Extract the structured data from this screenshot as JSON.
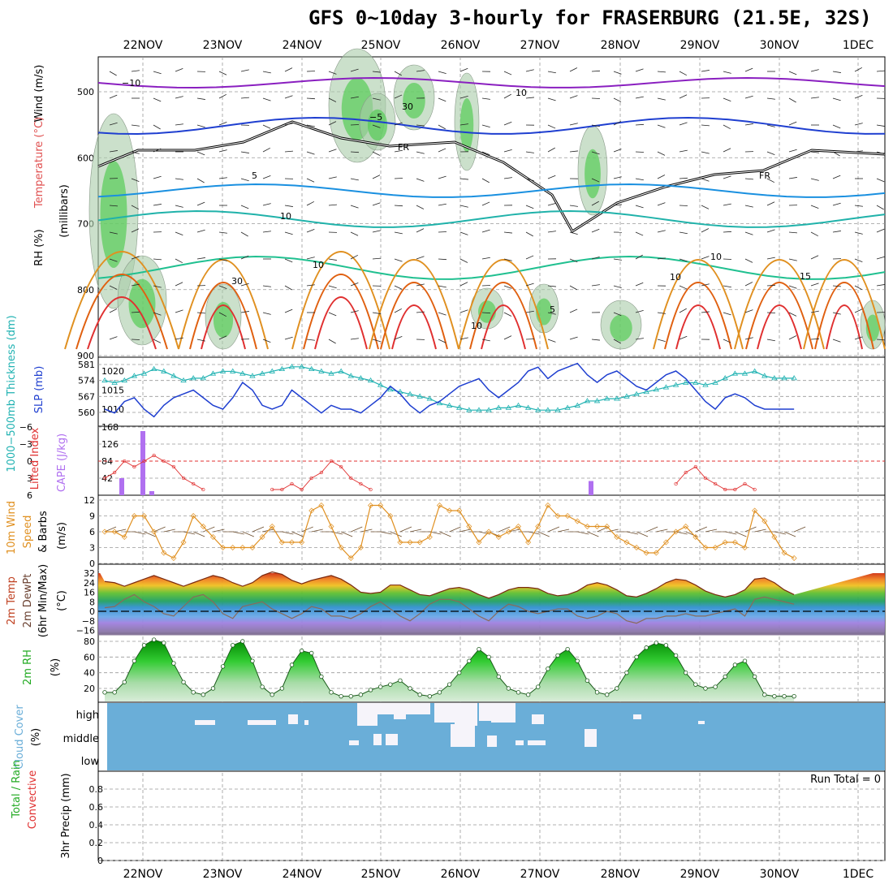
{
  "title": "GFS 0~10day 3-hourly for FRASERBURG (21.5E, 32S)",
  "dates": [
    "22NOV",
    "23NOV",
    "24NOV",
    "25NOV",
    "26NOV",
    "27NOV",
    "28NOV",
    "29NOV",
    "30NOV",
    "1DEC"
  ],
  "colors": {
    "temp0": "#8a2be2",
    "temp5": "#1e90ff",
    "temp10": "#20b2aa",
    "warm": "#ff8c00",
    "slp": "#1f3fd0",
    "thick": "#20b2b2",
    "li": "#e03030",
    "cape": "#b070f0",
    "wind": "#e09020",
    "rh": "#22bb22",
    "cloud": "#6aaed8"
  },
  "panels": {
    "upper": {
      "label_wind": "Wind (m/s)",
      "label_temp": "Temperature (°C)",
      "label_rh": "RH (%)",
      "label_mb": "(millibars)",
      "yticks": [
        "500",
        "600",
        "700",
        "800",
        "900"
      ],
      "contour_labels": [
        "−10",
        "10",
        "−5",
        "FR",
        "5",
        "10",
        "15",
        "10",
        "5",
        "10",
        "30",
        "10",
        "30",
        "10",
        "FR"
      ]
    },
    "slp": {
      "label_thk": "1000−500mb Thickness (dm)",
      "label_slp": "SLP (mb)",
      "ticks_left": [
        "581",
        "574",
        "567",
        "560"
      ],
      "ticks_right": [
        "1020",
        "1015",
        "1010"
      ]
    },
    "li": {
      "label_li": "Lifted Index",
      "label_cape": "CAPE (J/kg)",
      "ticks_left": [
        "−6",
        "−3",
        "0",
        "3",
        "6"
      ],
      "ticks_right": [
        "168",
        "126",
        "84",
        "42"
      ]
    },
    "wind10": {
      "label_a": "10m Wind",
      "label_b": "Speed",
      "label_c": "& Barbs",
      "label_unit": "(m/s)",
      "ticks": [
        "12",
        "9",
        "6",
        "3",
        "0"
      ]
    },
    "temp2m": {
      "label_a": "2m Temp",
      "label_b": "2m DewPt",
      "label_c": "(6hr Min/Max)",
      "label_unit": "(°C)",
      "ticks": [
        "32",
        "24",
        "16",
        "8",
        "0",
        "−8",
        "−16"
      ]
    },
    "rh2m": {
      "label": "2m RH",
      "label_unit": "(%)",
      "ticks": [
        "80",
        "60",
        "40",
        "20"
      ]
    },
    "cloud": {
      "label": "Cloud Cover",
      "label_unit": "(%)",
      "levels": [
        "high",
        "middle",
        "low"
      ]
    },
    "precip": {
      "label_a": "3hr Precip (mm)",
      "label_b": "Total / Rain",
      "label_c": "Convective",
      "run_total": "Run Total = 0",
      "ticks": [
        "0.8",
        "0.6",
        "0.4",
        "0.2",
        "0"
      ]
    }
  },
  "chart_data": [
    {
      "type": "line",
      "title": "1000-500mb Thickness / SLP",
      "series": [
        {
          "name": "SLP (mb)",
          "values": [
            1010,
            1009,
            1012,
            1013,
            1010,
            1008,
            1011,
            1013,
            1014,
            1015,
            1013,
            1011,
            1010,
            1013,
            1017,
            1015,
            1011,
            1010,
            1011,
            1015,
            1013,
            1011,
            1009,
            1011,
            1010,
            1010,
            1009,
            1011,
            1013,
            1016,
            1014,
            1011,
            1009,
            1011,
            1012,
            1014,
            1016,
            1017,
            1018,
            1015,
            1013,
            1015,
            1017,
            1020,
            1021,
            1018,
            1020,
            1021,
            1022,
            1019,
            1017,
            1019,
            1020,
            1018,
            1016,
            1015,
            1017,
            1019,
            1020,
            1018,
            1015,
            1012,
            1010,
            1013,
            1014,
            1013,
            1011,
            1010,
            1010,
            1010,
            1010
          ]
        },
        {
          "name": "Thickness (dm)",
          "values": [
            574,
            573,
            574,
            576,
            577,
            579,
            578,
            576,
            574,
            575,
            575,
            577,
            578,
            578,
            577,
            576,
            577,
            578,
            579,
            580,
            580,
            579,
            578,
            577,
            578,
            576,
            575,
            574,
            572,
            570,
            569,
            568,
            567,
            566,
            564,
            563,
            562,
            561,
            561,
            561,
            562,
            562,
            563,
            562,
            561,
            561,
            561,
            562,
            563,
            565,
            565,
            566,
            566,
            567,
            568,
            569,
            570,
            571,
            572,
            573,
            573,
            572,
            573,
            575,
            577,
            577,
            578,
            576,
            575,
            575,
            575
          ]
        }
      ]
    },
    {
      "type": "bar",
      "title": "CAPE",
      "categories": [
        "21.9",
        "22.0",
        "22.1",
        "27.6"
      ],
      "values": [
        42,
        158,
        10,
        35
      ]
    },
    {
      "type": "line",
      "title": "Lifted Index",
      "values": [
        3,
        2,
        0,
        1,
        0,
        -1,
        0,
        1,
        3,
        4,
        5,
        null,
        null,
        null,
        null,
        null,
        null,
        5,
        5,
        4,
        5,
        3,
        2,
        0,
        1,
        3,
        4,
        5,
        null,
        null,
        null,
        null,
        null,
        null,
        null,
        null,
        null,
        null,
        null,
        null,
        null,
        null,
        null,
        null,
        null,
        null,
        null,
        null,
        null,
        null,
        null,
        null,
        null,
        null,
        null,
        null,
        null,
        null,
        4,
        2,
        1,
        3,
        4,
        5,
        5,
        4,
        5,
        null,
        null,
        null,
        null
      ]
    },
    {
      "type": "line",
      "title": "10m Wind Speed (m/s)",
      "values": [
        6,
        6,
        5,
        9,
        9,
        6,
        2,
        1,
        4,
        9,
        7,
        5,
        3,
        3,
        3,
        3,
        5,
        7,
        4,
        4,
        4,
        10,
        11,
        7,
        3,
        1,
        3,
        11,
        11,
        9,
        4,
        4,
        4,
        5,
        11,
        10,
        10,
        7,
        4,
        6,
        5,
        6,
        7,
        4,
        7,
        11,
        9,
        9,
        8,
        7,
        7,
        7,
        5,
        4,
        3,
        2,
        2,
        4,
        6,
        7,
        5,
        3,
        3,
        4,
        4,
        3,
        10,
        8,
        5,
        2,
        1
      ]
    },
    {
      "type": "area",
      "title": "2m Temp (°C)",
      "values": [
        25,
        24,
        21,
        24,
        27,
        30,
        27,
        24,
        21,
        24,
        27,
        30,
        28,
        24,
        21,
        24,
        30,
        33,
        31,
        26,
        23,
        26,
        28,
        30,
        27,
        22,
        16,
        15,
        16,
        22,
        22,
        18,
        14,
        13,
        16,
        19,
        20,
        18,
        14,
        11,
        14,
        18,
        20,
        20,
        19,
        15,
        13,
        14,
        17,
        22,
        24,
        22,
        18,
        13,
        12,
        15,
        19,
        24,
        27,
        26,
        22,
        17,
        14,
        12,
        14,
        18,
        27,
        28,
        24,
        18,
        14
      ]
    },
    {
      "type": "line",
      "title": "2m DewPt (°C)",
      "values": [
        3,
        4,
        10,
        14,
        8,
        4,
        -2,
        -4,
        4,
        12,
        14,
        8,
        -2,
        -6,
        4,
        6,
        8,
        2,
        -2,
        -6,
        -2,
        4,
        2,
        -4,
        -4,
        -6,
        -2,
        4,
        8,
        2,
        -4,
        -8,
        -2,
        6,
        10,
        10,
        8,
        2,
        -4,
        -8,
        0,
        6,
        4,
        0,
        -2,
        0,
        2,
        2,
        -4,
        -6,
        -4,
        0,
        -2,
        -8,
        -10,
        -6,
        -6,
        -4,
        -4,
        -2,
        -4,
        -4,
        -2,
        0,
        2,
        -4,
        10,
        12,
        10,
        8,
        6
      ]
    },
    {
      "type": "area",
      "title": "2m RH (%)",
      "values": [
        15,
        15,
        28,
        55,
        75,
        82,
        78,
        52,
        28,
        15,
        12,
        20,
        48,
        75,
        80,
        55,
        22,
        12,
        20,
        50,
        68,
        65,
        35,
        15,
        10,
        10,
        12,
        18,
        22,
        25,
        30,
        20,
        12,
        10,
        15,
        25,
        40,
        55,
        70,
        60,
        35,
        20,
        15,
        12,
        22,
        45,
        62,
        70,
        55,
        30,
        15,
        12,
        20,
        40,
        60,
        72,
        78,
        75,
        62,
        40,
        25,
        20,
        22,
        35,
        50,
        55,
        35,
        12,
        10,
        10,
        10
      ]
    },
    {
      "type": "bar",
      "title": "3hr Precip (mm)",
      "categories": [
        "21.5",
        "1.2"
      ],
      "values": [
        0,
        0
      ]
    }
  ]
}
